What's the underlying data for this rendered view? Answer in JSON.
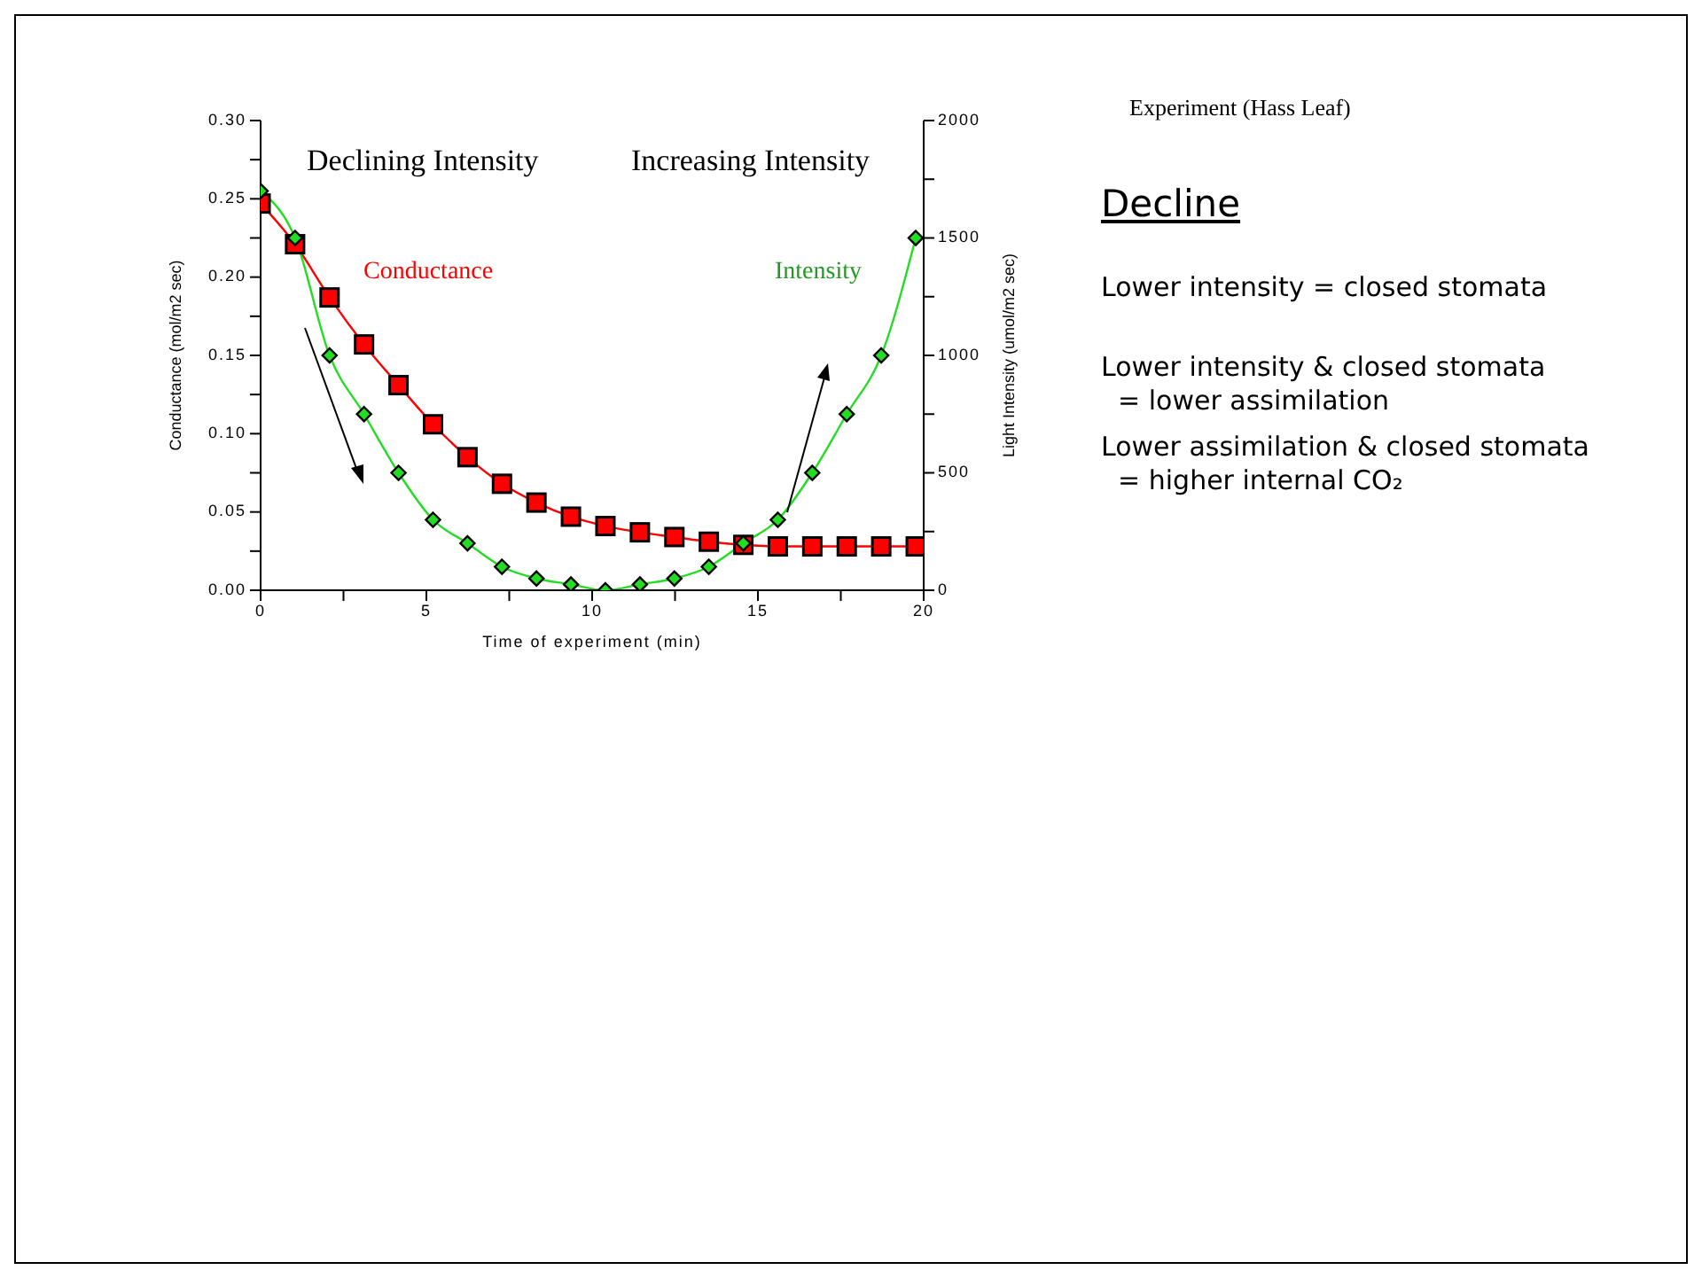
{
  "chart_data": {
    "type": "line",
    "title": "Experiment (Hass Leaf)",
    "xlabel": "Time of experiment (min)",
    "ylabel": "Conductance (mol/m2 sec)",
    "y2label": "Light Intensity (umol/m2 sec)",
    "x": [
      0,
      1.04,
      2.08,
      3.12,
      4.16,
      5.2,
      6.24,
      7.28,
      8.32,
      9.36,
      10.4,
      11.44,
      12.48,
      13.52,
      14.56,
      15.6,
      16.64,
      17.68,
      18.72,
      19.76
    ],
    "series": [
      {
        "name": "Conductance",
        "color": "#ff0000",
        "marker": "square",
        "values": [
          0.247,
          0.221,
          0.187,
          0.157,
          0.131,
          0.106,
          0.085,
          0.068,
          0.056,
          0.047,
          0.041,
          0.037,
          0.034,
          0.031,
          0.029,
          0.028,
          0.028,
          0.028,
          0.028,
          0.028
        ]
      },
      {
        "name": "Intensity",
        "color": "#22dd22",
        "marker": "diamond",
        "axis": "y2",
        "values": [
          1700,
          1500,
          1000,
          750,
          500,
          300,
          200,
          100,
          50,
          25,
          0,
          25,
          50,
          100,
          200,
          300,
          500,
          750,
          1000,
          1500
        ]
      }
    ],
    "xlim": [
      0,
      20
    ],
    "xticks": [
      0,
      {
        "value": 2.5,
        "label": null
      },
      5,
      {
        "value": 7.5,
        "label": null
      },
      10,
      {
        "value": 12.5,
        "label": null
      },
      15,
      {
        "value": 17.5,
        "label": null
      },
      20
    ],
    "ylim": [
      0,
      0.3
    ],
    "yticks": [
      {
        "value": 0,
        "label": "0.00"
      },
      {
        "value": 0.025,
        "label": null
      },
      {
        "value": 0.05,
        "label": "0.05"
      },
      {
        "value": 0.075,
        "label": null
      },
      {
        "value": 0.1,
        "label": "0.10"
      },
      {
        "value": 0.125,
        "label": null
      },
      {
        "value": 0.15,
        "label": "0.15"
      },
      {
        "value": 0.175,
        "label": null
      },
      {
        "value": 0.2,
        "label": "0.20"
      },
      {
        "value": 0.225,
        "label": null
      },
      {
        "value": 0.25,
        "label": "0.25"
      },
      {
        "value": 0.275,
        "label": null
      },
      {
        "value": 0.3,
        "label": "0.30"
      }
    ],
    "y2lim": [
      0,
      2000
    ],
    "y2ticks": [
      0,
      {
        "value": 250,
        "label": null
      },
      500,
      {
        "value": 750,
        "label": null
      },
      1000,
      {
        "value": 1250,
        "label": null
      },
      1500,
      {
        "value": 1750,
        "label": null
      },
      2000
    ],
    "annotations": [
      "Declining Intensity",
      "Increasing Intensity",
      "Decline",
      "Lower intensity = closed stomata",
      "Lower intensity & closed stomata\n  = lower assimilation",
      "Lower assimilation & closed stomata\n  = higher internal CO₂"
    ],
    "grid": false,
    "legend": false
  }
}
